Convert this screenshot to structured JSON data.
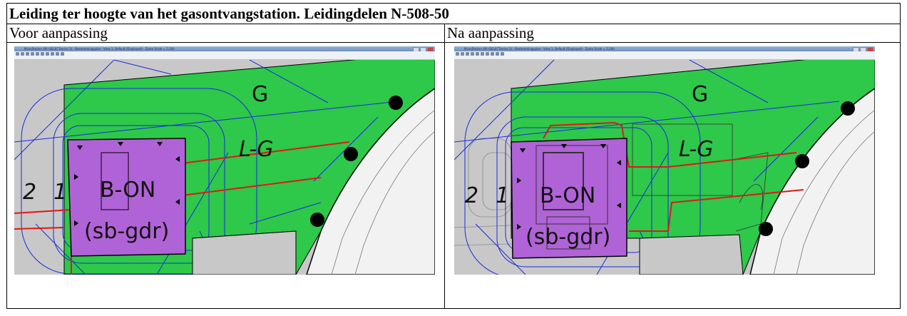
{
  "title": "Leiding ter hoogte van het gasontvangstation. Leidingdelen N-508-50",
  "columns": [
    "Voor aanpassing",
    "Na aanpassing"
  ],
  "left_image": {
    "window_title": "MicroStation V8i (SELECTseries 3) - Bestemmingsplan - View 1, Default (Displayed) - Zoom Scale = 1:200",
    "labels": {
      "zone_g": "G",
      "zone_lg": "L-G",
      "zone_bon": "B-ON",
      "zone_sbgdr": "(sb-gdr)",
      "num_2": "2",
      "num_1": "1"
    }
  },
  "right_image": {
    "window_title": "MicroStation V8i (SELECTseries 3) - Bestemmingsplan - View 1, Default (Displayed) - Zoom Scale = 1:200",
    "labels": {
      "zone_g": "G",
      "zone_lg": "L-G",
      "zone_bon": "B-ON",
      "zone_sbgdr": "(sb-gdr)",
      "num_2": "2",
      "num_1": "1"
    }
  },
  "colors": {
    "green": "#2ec84a",
    "purple": "#b063d6",
    "grey": "#c8c8c8",
    "blue": "#1a2be0",
    "red": "#e01818"
  }
}
